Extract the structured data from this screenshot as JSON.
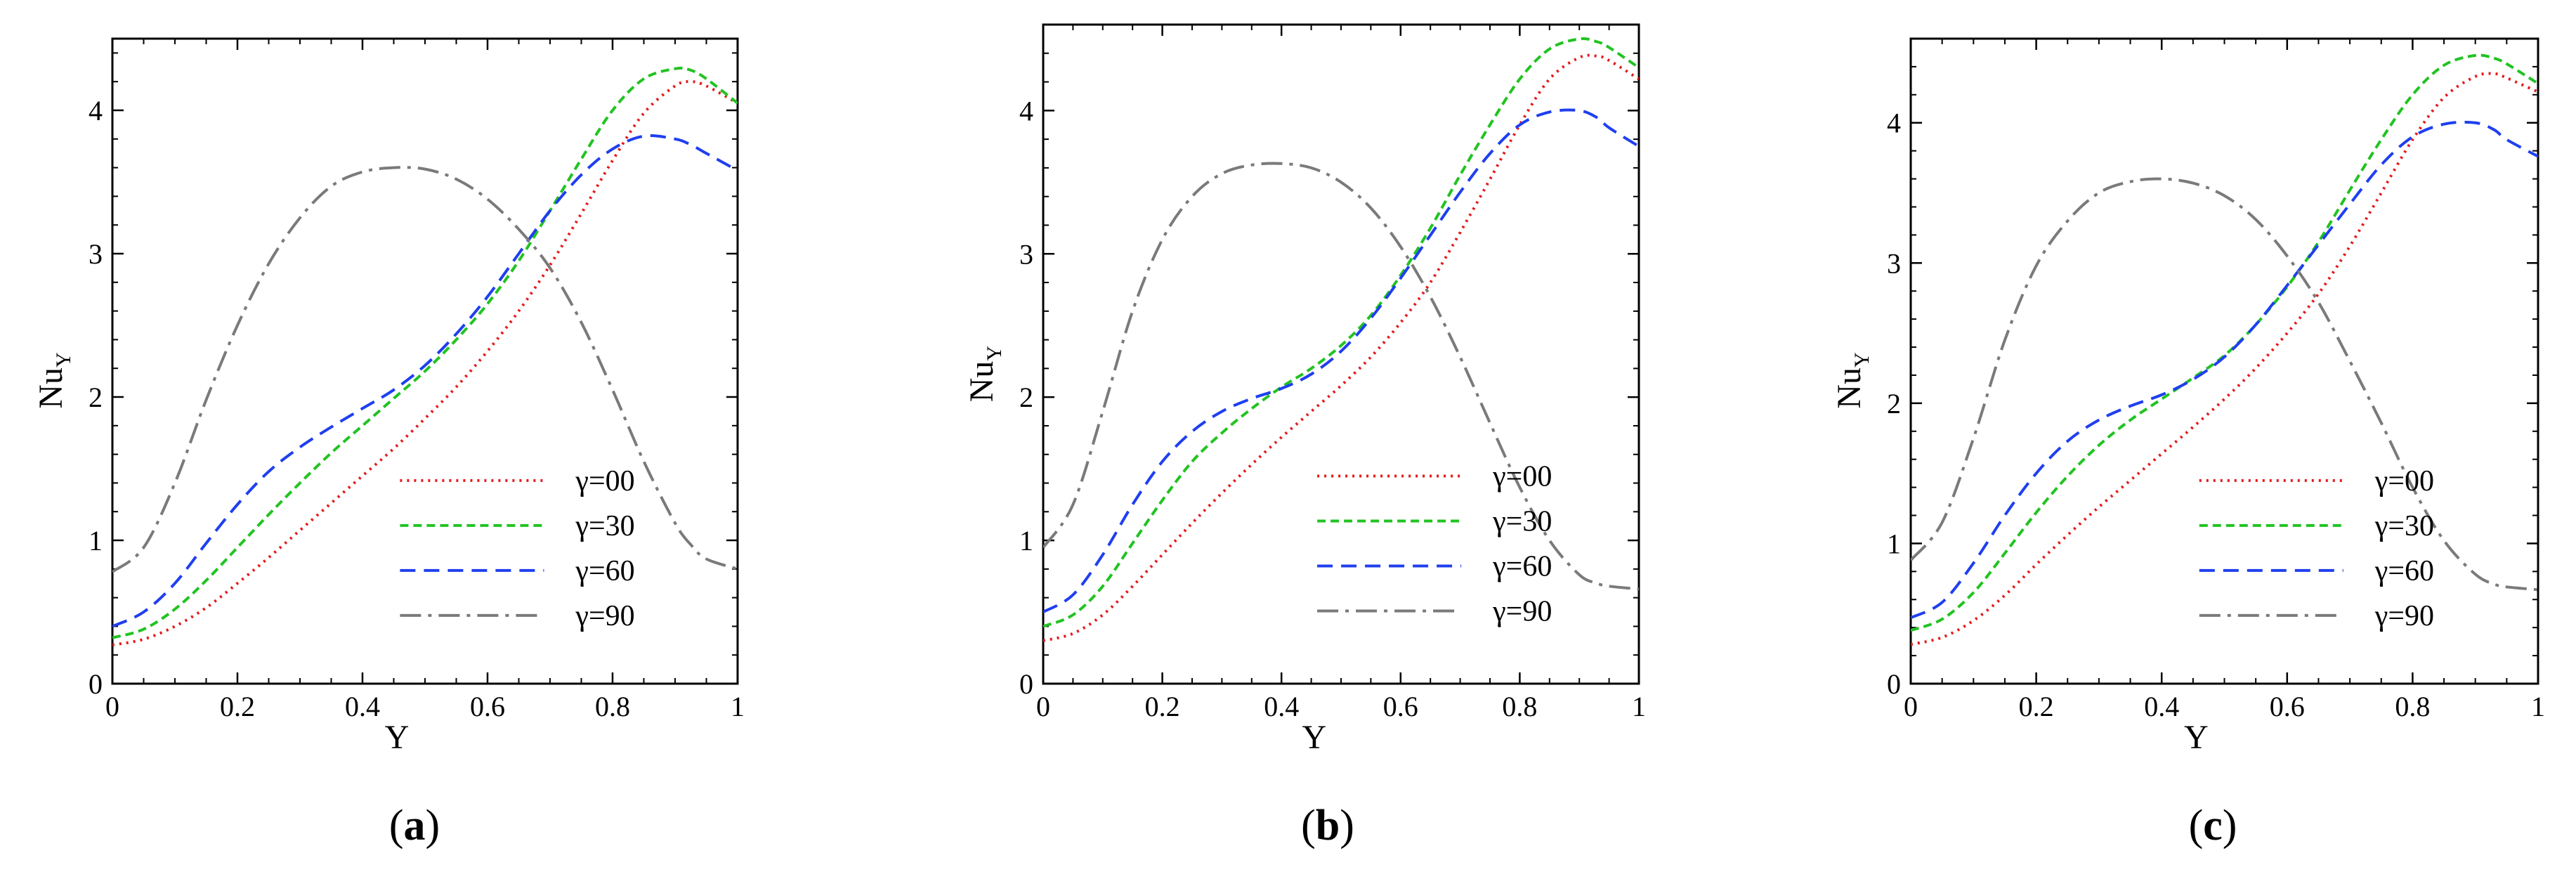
{
  "chart_data": [
    {
      "type": "line",
      "panel_label": "a",
      "title": "",
      "xlabel": "Y",
      "ylabel": {
        "main": "Nu",
        "subscript": "Y"
      },
      "xlim": [
        0,
        1
      ],
      "ylim": [
        0,
        4.5
      ],
      "x_ticks": [
        0,
        0.2,
        0.4,
        0.6,
        0.8,
        1
      ],
      "x_tick_labels": [
        "0",
        "0.2",
        "0.4",
        "0.6",
        "0.8",
        "1"
      ],
      "y_ticks": [
        0,
        1,
        2,
        3,
        4
      ],
      "y_tick_labels": [
        "0",
        "1",
        "2",
        "3",
        "4"
      ],
      "grid": false,
      "legend_position": "lower-right",
      "x": [
        0,
        0.05,
        0.1,
        0.15,
        0.2,
        0.25,
        0.3,
        0.35,
        0.4,
        0.45,
        0.5,
        0.55,
        0.6,
        0.65,
        0.7,
        0.75,
        0.8,
        0.85,
        0.9,
        0.925,
        0.95,
        1
      ],
      "series": [
        {
          "name": "γ=00",
          "color": "#e41a1c",
          "style": "dotted",
          "values": [
            0.27,
            0.31,
            0.4,
            0.53,
            0.7,
            0.88,
            1.07,
            1.26,
            1.45,
            1.64,
            1.85,
            2.07,
            2.32,
            2.6,
            2.92,
            3.28,
            3.65,
            3.98,
            4.17,
            4.2,
            4.17,
            4.05
          ]
        },
        {
          "name": "γ=30",
          "color": "#22c322",
          "style": "short-dashed",
          "values": [
            0.32,
            0.38,
            0.52,
            0.72,
            0.95,
            1.18,
            1.4,
            1.61,
            1.8,
            1.99,
            2.18,
            2.4,
            2.65,
            2.95,
            3.3,
            3.66,
            4.0,
            4.22,
            4.29,
            4.28,
            4.22,
            4.05
          ]
        },
        {
          "name": "γ=60",
          "color": "#1f3fef",
          "style": "dashed",
          "values": [
            0.4,
            0.5,
            0.7,
            0.98,
            1.25,
            1.48,
            1.65,
            1.79,
            1.92,
            2.05,
            2.22,
            2.44,
            2.7,
            3.0,
            3.3,
            3.55,
            3.73,
            3.82,
            3.8,
            3.76,
            3.7,
            3.58
          ]
        },
        {
          "name": "γ=90",
          "color": "#7a7a7a",
          "style": "dash-dot",
          "values": [
            0.78,
            0.95,
            1.4,
            1.98,
            2.5,
            2.93,
            3.25,
            3.47,
            3.57,
            3.6,
            3.59,
            3.52,
            3.38,
            3.17,
            2.9,
            2.52,
            2.05,
            1.55,
            1.12,
            0.97,
            0.87,
            0.8
          ]
        }
      ]
    },
    {
      "type": "line",
      "panel_label": "b",
      "title": "",
      "xlabel": "Y",
      "ylabel": {
        "main": "Nu",
        "subscript": "Y"
      },
      "xlim": [
        0,
        1
      ],
      "ylim": [
        0,
        4.6
      ],
      "x_ticks": [
        0,
        0.2,
        0.4,
        0.6,
        0.8,
        1
      ],
      "x_tick_labels": [
        "0",
        "0.2",
        "0.4",
        "0.6",
        "0.8",
        "1"
      ],
      "y_ticks": [
        0,
        1,
        2,
        3,
        4
      ],
      "y_tick_labels": [
        "0",
        "1",
        "2",
        "3",
        "4"
      ],
      "grid": false,
      "legend_position": "lower-right",
      "x": [
        0,
        0.05,
        0.1,
        0.15,
        0.2,
        0.25,
        0.3,
        0.35,
        0.4,
        0.45,
        0.5,
        0.55,
        0.6,
        0.65,
        0.7,
        0.75,
        0.8,
        0.85,
        0.9,
        0.93,
        0.95,
        1
      ],
      "series": [
        {
          "name": "γ=00",
          "color": "#e41a1c",
          "style": "dotted",
          "values": [
            0.3,
            0.35,
            0.48,
            0.68,
            0.9,
            1.12,
            1.33,
            1.53,
            1.72,
            1.9,
            2.08,
            2.28,
            2.52,
            2.8,
            3.15,
            3.52,
            3.9,
            4.22,
            4.37,
            4.38,
            4.35,
            4.22
          ]
        },
        {
          "name": "γ=30",
          "color": "#22c322",
          "style": "short-dashed",
          "values": [
            0.4,
            0.48,
            0.68,
            0.98,
            1.28,
            1.55,
            1.75,
            1.92,
            2.07,
            2.2,
            2.36,
            2.57,
            2.85,
            3.18,
            3.55,
            3.9,
            4.22,
            4.43,
            4.5,
            4.48,
            4.44,
            4.3
          ]
        },
        {
          "name": "γ=60",
          "color": "#1f3fef",
          "style": "dashed",
          "values": [
            0.5,
            0.62,
            0.9,
            1.25,
            1.55,
            1.76,
            1.9,
            1.99,
            2.06,
            2.16,
            2.32,
            2.55,
            2.83,
            3.13,
            3.43,
            3.7,
            3.9,
            3.99,
            4.0,
            3.95,
            3.88,
            3.75
          ]
        },
        {
          "name": "γ=90",
          "color": "#7a7a7a",
          "style": "dash-dot",
          "values": [
            0.95,
            1.25,
            1.9,
            2.6,
            3.1,
            3.4,
            3.56,
            3.62,
            3.63,
            3.6,
            3.5,
            3.32,
            3.05,
            2.7,
            2.28,
            1.82,
            1.37,
            1.0,
            0.76,
            0.7,
            0.68,
            0.66
          ]
        }
      ]
    },
    {
      "type": "line",
      "panel_label": "c",
      "title": "",
      "xlabel": "Y",
      "ylabel": {
        "main": "Nu",
        "subscript": "Y"
      },
      "xlim": [
        0,
        1
      ],
      "ylim": [
        0,
        4.6
      ],
      "x_ticks": [
        0,
        0.2,
        0.4,
        0.6,
        0.8,
        1
      ],
      "x_tick_labels": [
        "0",
        "0.2",
        "0.4",
        "0.6",
        "0.8",
        "1"
      ],
      "y_ticks": [
        0,
        1,
        2,
        3,
        4
      ],
      "y_tick_labels": [
        "0",
        "1",
        "2",
        "3",
        "4"
      ],
      "grid": false,
      "legend_position": "lower-right",
      "x": [
        0,
        0.05,
        0.1,
        0.15,
        0.2,
        0.25,
        0.3,
        0.35,
        0.4,
        0.45,
        0.5,
        0.55,
        0.6,
        0.65,
        0.7,
        0.75,
        0.8,
        0.85,
        0.9,
        0.93,
        0.95,
        1
      ],
      "series": [
        {
          "name": "γ=00",
          "color": "#e41a1c",
          "style": "dotted",
          "values": [
            0.28,
            0.33,
            0.45,
            0.63,
            0.85,
            1.06,
            1.26,
            1.45,
            1.64,
            1.83,
            2.03,
            2.25,
            2.5,
            2.78,
            3.12,
            3.5,
            3.88,
            4.18,
            4.33,
            4.35,
            4.32,
            4.22
          ]
        },
        {
          "name": "γ=30",
          "color": "#22c322",
          "style": "short-dashed",
          "values": [
            0.38,
            0.46,
            0.65,
            0.93,
            1.22,
            1.48,
            1.7,
            1.88,
            2.03,
            2.18,
            2.34,
            2.56,
            2.83,
            3.15,
            3.52,
            3.88,
            4.2,
            4.41,
            4.48,
            4.46,
            4.42,
            4.28
          ]
        },
        {
          "name": "γ=60",
          "color": "#1f3fef",
          "style": "dashed",
          "values": [
            0.47,
            0.58,
            0.86,
            1.2,
            1.5,
            1.73,
            1.88,
            1.98,
            2.06,
            2.17,
            2.33,
            2.56,
            2.84,
            3.13,
            3.42,
            3.7,
            3.9,
            3.99,
            4.0,
            3.95,
            3.88,
            3.76
          ]
        },
        {
          "name": "γ=90",
          "color": "#7a7a7a",
          "style": "dash-dot",
          "values": [
            0.88,
            1.15,
            1.75,
            2.45,
            2.98,
            3.3,
            3.5,
            3.58,
            3.6,
            3.57,
            3.48,
            3.31,
            3.05,
            2.72,
            2.3,
            1.86,
            1.4,
            1.02,
            0.78,
            0.71,
            0.69,
            0.67
          ]
        }
      ]
    }
  ]
}
